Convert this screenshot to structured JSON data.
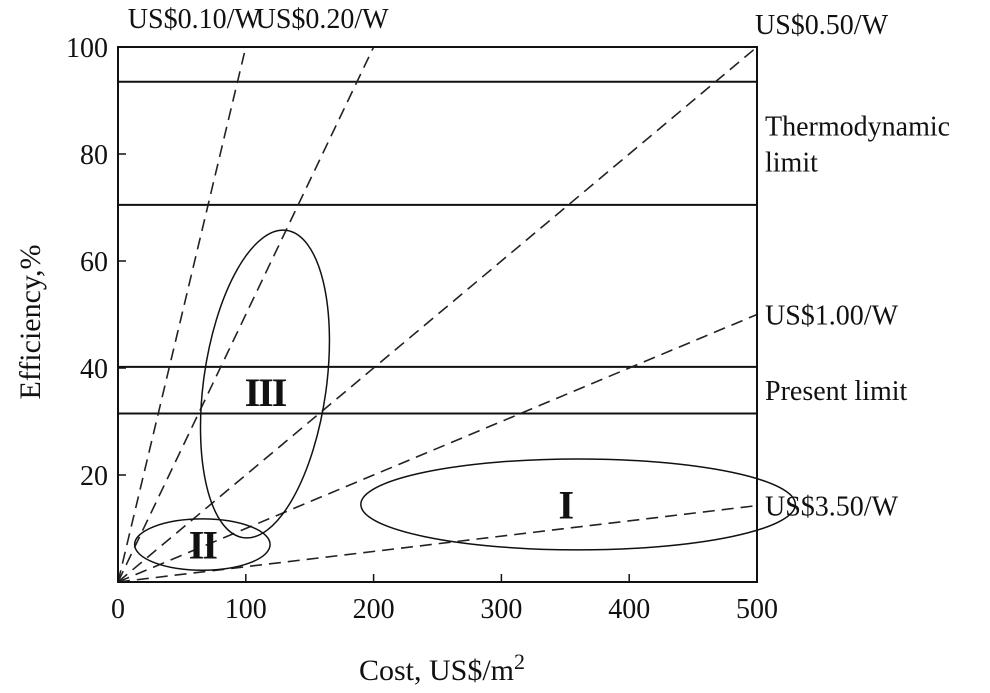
{
  "chart_data": {
    "type": "line",
    "xlabel": "Cost, US$/m",
    "xlabel_superscript": "2",
    "ylabel": "Efficiency,%",
    "xlim": [
      0,
      500
    ],
    "ylim": [
      0,
      100
    ],
    "xticks": [
      0,
      100,
      200,
      300,
      400,
      500
    ],
    "yticks": [
      20,
      40,
      60,
      80,
      100
    ],
    "cost_lines": [
      {
        "label": "US$0.10/W",
        "usd_per_watt": 0.1,
        "label_side": "top"
      },
      {
        "label": "US$0.20/W",
        "usd_per_watt": 0.2,
        "label_side": "top"
      },
      {
        "label": "US$0.50/W",
        "usd_per_watt": 0.5,
        "label_side": "top-right"
      },
      {
        "label": "US$1.00/W",
        "usd_per_watt": 1.0,
        "label_side": "right"
      },
      {
        "label": "US$3.50/W",
        "usd_per_watt": 3.5,
        "label_side": "right"
      }
    ],
    "limit_bands": [
      {
        "label_lines": [
          "Thermodynamic",
          "limit"
        ],
        "y_low": 70.5,
        "y_high": 93.5
      },
      {
        "label_lines": [
          "Present limit"
        ],
        "y_low": 31.5,
        "y_high": 40.2
      }
    ],
    "regions": [
      {
        "label": "I",
        "cx": 360,
        "cy": 14.5,
        "rx": 170,
        "ry": 8.5,
        "angle_deg": 0,
        "label_at": [
          350,
          14.5
        ]
      },
      {
        "label": "II",
        "cx": 66,
        "cy": 7.0,
        "rx": 53,
        "ry": 4.8,
        "angle_deg": 0,
        "label_at": [
          66,
          7
        ]
      },
      {
        "label": "III",
        "cx": 115,
        "cy": 37.0,
        "rx": 48,
        "ry": 29.0,
        "angle_deg": 8,
        "label_at": [
          115,
          35.5
        ]
      }
    ]
  }
}
